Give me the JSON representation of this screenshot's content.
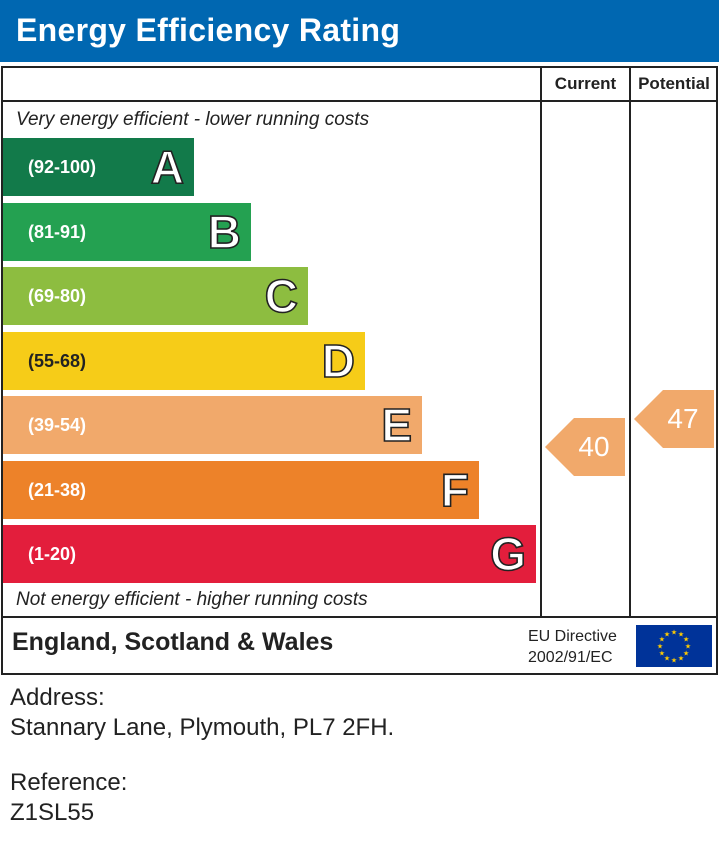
{
  "header": {
    "title": "Energy Efficiency Rating"
  },
  "columns": {
    "current": "Current",
    "potential": "Potential"
  },
  "scale": {
    "top_note": "Very energy efficient - lower running costs",
    "bottom_note": "Not energy efficient - higher running costs"
  },
  "chart_data": {
    "type": "bar",
    "bands": [
      {
        "letter": "A",
        "range": "(92-100)",
        "min": 92,
        "max": 100,
        "color": "#127a4a"
      },
      {
        "letter": "B",
        "range": "(81-91)",
        "min": 81,
        "max": 91,
        "color": "#24a151"
      },
      {
        "letter": "C",
        "range": "(69-80)",
        "min": 69,
        "max": 80,
        "color": "#8dbd40"
      },
      {
        "letter": "D",
        "range": "(55-68)",
        "min": 55,
        "max": 68,
        "color": "#f6cc18"
      },
      {
        "letter": "E",
        "range": "(39-54)",
        "min": 39,
        "max": 54,
        "color": "#f1a96b"
      },
      {
        "letter": "F",
        "range": "(21-38)",
        "min": 21,
        "max": 38,
        "color": "#ed8229"
      },
      {
        "letter": "G",
        "range": "(1-20)",
        "min": 1,
        "max": 20,
        "color": "#e31e3c"
      }
    ],
    "current": {
      "value": 40,
      "display": "40",
      "band": "E",
      "color": "#f1a96b"
    },
    "potential": {
      "value": 47,
      "display": "47",
      "band": "E",
      "color": "#f1a96b"
    }
  },
  "footer": {
    "region": "England, Scotland & Wales",
    "directive_line1": "EU Directive",
    "directive_line2": "2002/91/EC",
    "flag_icon": "eu-flag-icon",
    "flag_color": "#003399",
    "star_color": "#ffcc00"
  },
  "property": {
    "address_label": "Address:",
    "address": "Stannary Lane, Plymouth, PL7 2FH.",
    "reference_label": "Reference:",
    "reference": "Z1SL55"
  }
}
